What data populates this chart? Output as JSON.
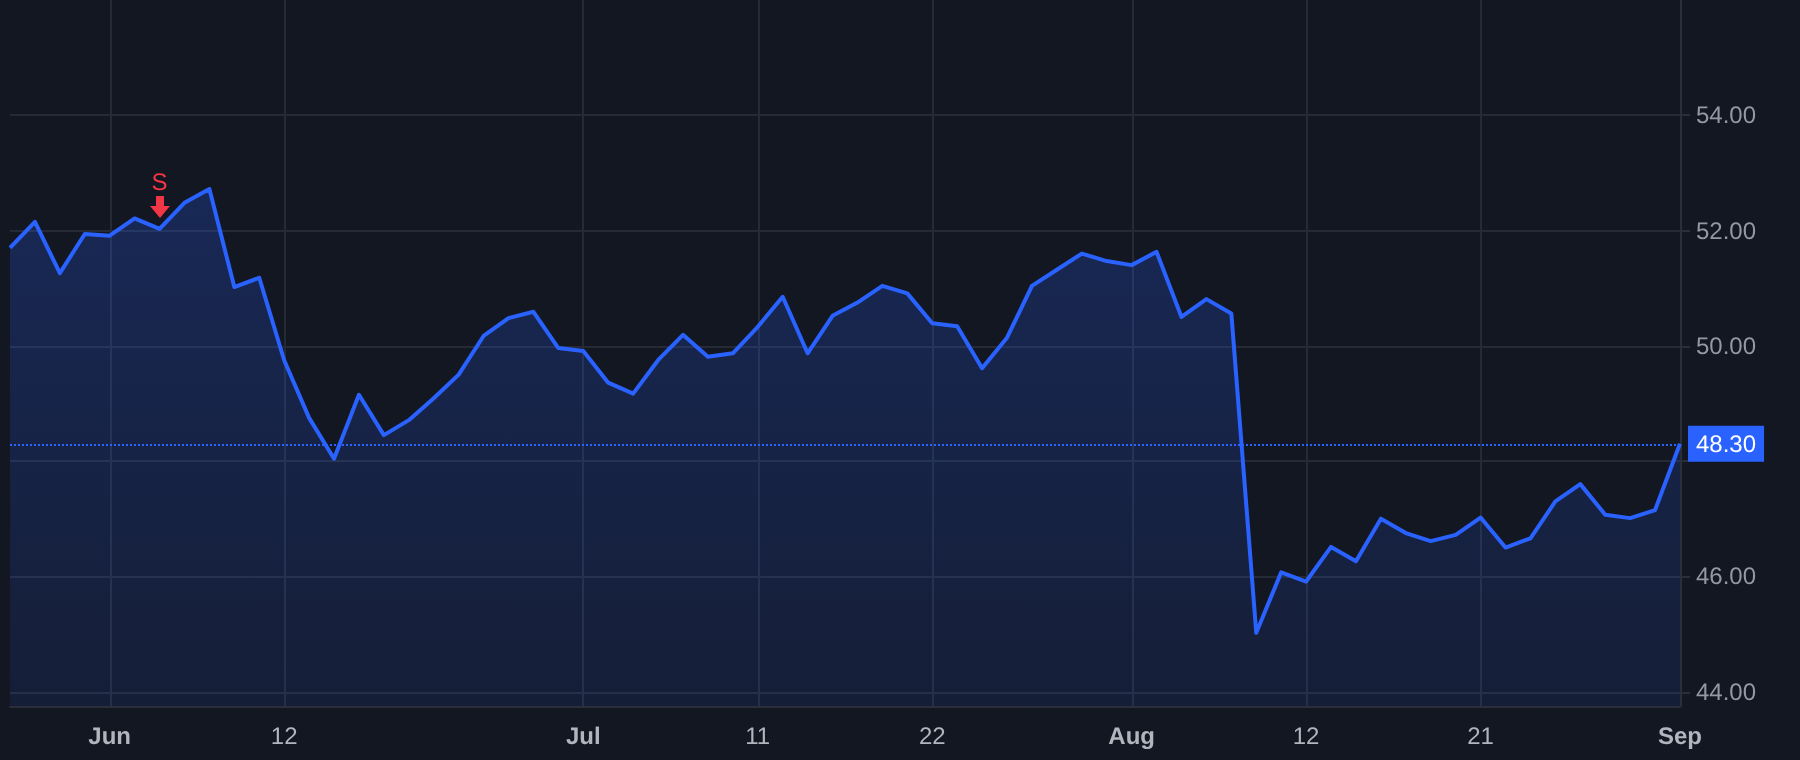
{
  "chart_data": {
    "type": "area",
    "categories": [
      null,
      null,
      null,
      null,
      "Jun",
      null,
      null,
      null,
      null,
      null,
      null,
      "12",
      null,
      null,
      null,
      null,
      null,
      null,
      null,
      null,
      null,
      null,
      null,
      "Jul",
      null,
      null,
      null,
      null,
      null,
      null,
      "11",
      null,
      null,
      null,
      null,
      null,
      null,
      "22",
      null,
      null,
      null,
      null,
      null,
      null,
      null,
      "Aug",
      null,
      null,
      null,
      null,
      null,
      null,
      "12",
      null,
      null,
      null,
      null,
      null,
      null,
      "21",
      null,
      null,
      null,
      null,
      null,
      null,
      null,
      "Sep"
    ],
    "series": [
      {
        "color": "#2962ff",
        "values": [
          51.7,
          52.15,
          51.26,
          51.94,
          51.91,
          52.21,
          52.03,
          52.48,
          52.72,
          51.02,
          51.18,
          49.75,
          48.75,
          48.04,
          49.15,
          48.45,
          48.71,
          49.09,
          49.5,
          50.17,
          50.48,
          50.59,
          49.96,
          49.91,
          49.36,
          49.17,
          49.75,
          50.19,
          49.81,
          49.87,
          50.33,
          50.85,
          49.87,
          50.52,
          50.75,
          51.04,
          50.91,
          50.39,
          50.34,
          49.61,
          50.14,
          51.04,
          51.32,
          51.6,
          51.47,
          51.4,
          51.63,
          50.5,
          50.81,
          50.56,
          45.02,
          46.07,
          45.91,
          46.51,
          46.26,
          47.0,
          46.75,
          46.61,
          46.72,
          47.02,
          46.5,
          46.66,
          47.3,
          47.6,
          47.07,
          47.01,
          47.15,
          48.3
        ]
      }
    ],
    "ylim": [
      43.75,
      56
    ],
    "yticks": [
      {
        "value": 44,
        "label": "44.00"
      },
      {
        "value": 46,
        "label": "46.00"
      },
      {
        "value": 48,
        "label": null
      },
      {
        "value": 50,
        "label": "50.00"
      },
      {
        "value": 52,
        "label": "52.00"
      },
      {
        "value": 54,
        "label": "54.00"
      }
    ],
    "ref_lines": [
      {
        "axis": "y",
        "value": 48.3,
        "label": "48.30",
        "color": "#2962ff",
        "line_style": "dotted"
      }
    ],
    "annotations": [
      {
        "text": "S",
        "y": 52.03
      }
    ],
    "grid": true,
    "marker": "none",
    "line_style": "solid"
  }
}
